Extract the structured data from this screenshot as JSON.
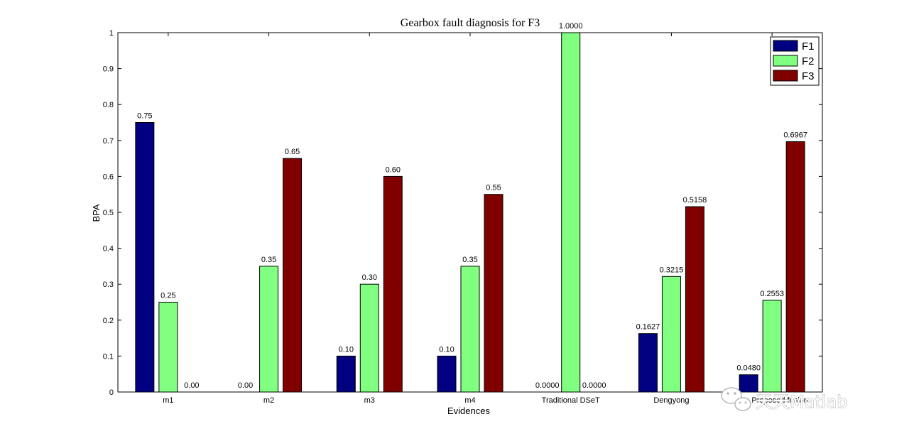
{
  "chart_data": {
    "type": "bar",
    "title": "Gearbox fault diagnosis for F3",
    "xlabel": "Evidences",
    "ylabel": "BPA",
    "ylim": [
      0,
      1
    ],
    "yticks": [
      0,
      0.1,
      0.2,
      0.3,
      0.4,
      0.5,
      0.6,
      0.7,
      0.8,
      0.9,
      1
    ],
    "ytick_labels": [
      "0",
      "0.1",
      "0.2",
      "0.3",
      "0.4",
      "0.5",
      "0.6",
      "0.7",
      "0.8",
      "0.9",
      "1"
    ],
    "categories": [
      "m1",
      "m2",
      "m3",
      "m4",
      "Traditional DSeT",
      "Dengyong",
      "The Proposed fusion"
    ],
    "series": [
      {
        "name": "F1",
        "color": "#000080",
        "values": [
          0.75,
          0,
          0.1,
          0.1,
          0,
          0.1627,
          0.048
        ],
        "labels": [
          "0.75",
          "",
          "0.10",
          "0.10",
          "0.0000",
          "0.1627",
          "0.0480"
        ]
      },
      {
        "name": "F2",
        "color": "#80ff80",
        "values": [
          0.25,
          0.35,
          0.3,
          0.35,
          1.0,
          0.3215,
          0.2553
        ],
        "labels": [
          "0.25",
          "0.35",
          "0.30",
          "0.35",
          "1.0000",
          "0.3215",
          "0.2553"
        ]
      },
      {
        "name": "F3",
        "color": "#800000",
        "values": [
          0,
          0.65,
          0.6,
          0.55,
          0,
          0.5158,
          0.6967
        ],
        "labels": [
          "0.00",
          "0.65",
          "0.60",
          "0.55",
          "0.0000",
          "0.5158",
          "0.6967"
        ]
      }
    ],
    "extra_labels": [
      {
        "category": 1,
        "series": 0,
        "text": "0.00"
      }
    ],
    "legend_position": "top-right",
    "grid": false
  },
  "watermark": {
    "text": "天天Matlab",
    "icon": "wechat-icon"
  }
}
